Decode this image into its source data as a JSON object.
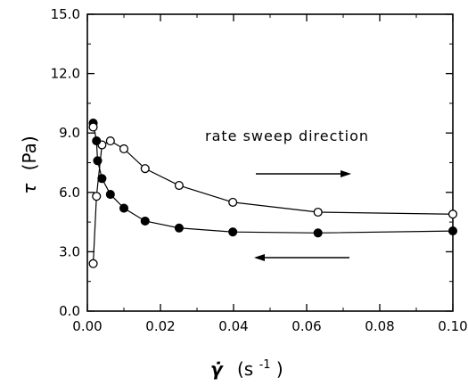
{
  "chart_data": {
    "type": "scatter",
    "xlabel": "γ̇ (s⁻¹)",
    "xlabel_parts": {
      "symbol": "γ̇",
      "unit_prefix": "(s",
      "exponent": "-1",
      "unit_suffix": ")"
    },
    "ylabel": "τ (Pa)",
    "ylabel_parts": {
      "symbol": "τ",
      "unit": "(Pa)"
    },
    "xlim": [
      0.0,
      0.1
    ],
    "ylim": [
      0.0,
      15.0
    ],
    "x_ticks": [
      "0.00",
      "0.02",
      "0.04",
      "0.06",
      "0.08",
      "0.10"
    ],
    "y_ticks": [
      "0.0",
      "3.0",
      "6.0",
      "9.0",
      "12.0",
      "15.0"
    ],
    "grid": false,
    "annotation": "rate sweep direction",
    "arrows": [
      {
        "direction": "right",
        "series": "open circles (increasing rate)"
      },
      {
        "direction": "left",
        "series": "filled circles (decreasing rate)"
      }
    ],
    "series": [
      {
        "marker": "open-circle",
        "x": [
          0.0016,
          0.0025,
          0.004,
          0.0063,
          0.01,
          0.0158,
          0.0251,
          0.0398,
          0.0631,
          0.1
        ],
        "values": [
          2.4,
          5.8,
          8.4,
          8.6,
          8.2,
          7.2,
          6.35,
          5.5,
          5.0,
          4.9
        ]
      },
      {
        "marker": "filled-circle",
        "x": [
          0.0016,
          0.0025,
          0.0028,
          0.004,
          0.0063,
          0.01,
          0.0158,
          0.0251,
          0.0398,
          0.0631,
          0.1
        ],
        "values": [
          9.5,
          8.6,
          7.6,
          6.7,
          5.9,
          5.2,
          4.55,
          4.2,
          4.0,
          3.95,
          4.05
        ]
      }
    ],
    "extra_marks": [
      {
        "marker": "open-circle",
        "x": 0.0016,
        "y": 9.3
      }
    ]
  }
}
